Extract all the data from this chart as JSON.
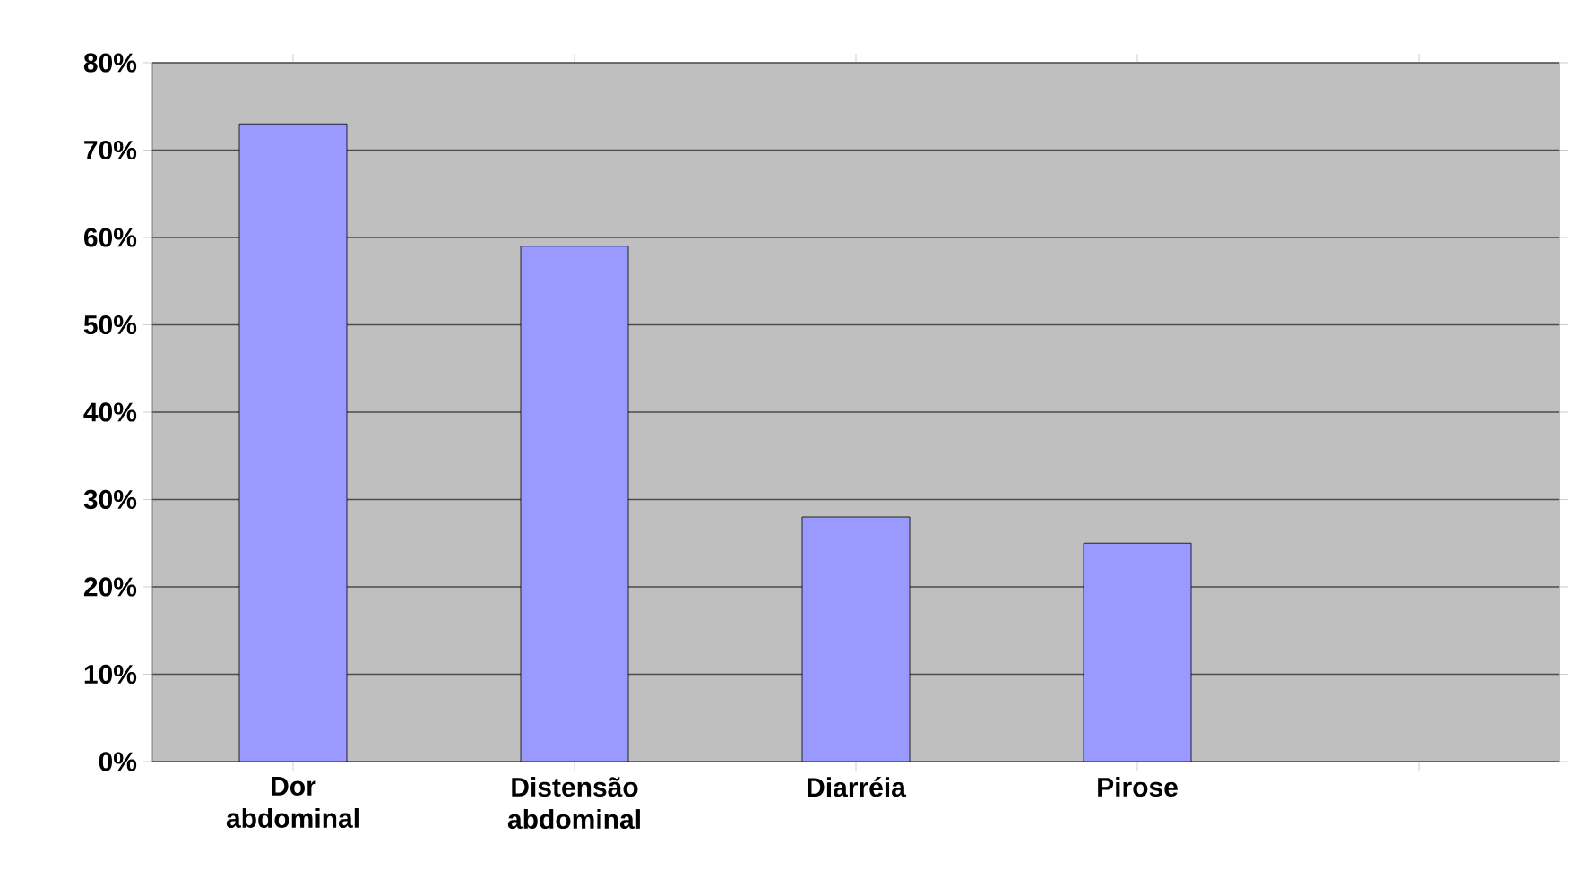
{
  "chart_data": {
    "type": "bar",
    "categories": [
      "Dor abdominal",
      "Distensão abdominal",
      "Diarréia",
      "Pirose",
      null
    ],
    "values": [
      73,
      59,
      28,
      25,
      null
    ],
    "color": "#9999ff",
    "ylim": [
      0,
      80
    ],
    "yticks": [
      {
        "value": 0,
        "label": "0%"
      },
      {
        "value": 10,
        "label": "10%"
      },
      {
        "value": 20,
        "label": "20%"
      },
      {
        "value": 30,
        "label": "30%"
      },
      {
        "value": 40,
        "label": "40%"
      },
      {
        "value": 50,
        "label": "50%"
      },
      {
        "value": 60,
        "label": "60%"
      },
      {
        "value": 70,
        "label": "70%"
      },
      {
        "value": 80,
        "label": "80%"
      }
    ],
    "grid": "y"
  }
}
